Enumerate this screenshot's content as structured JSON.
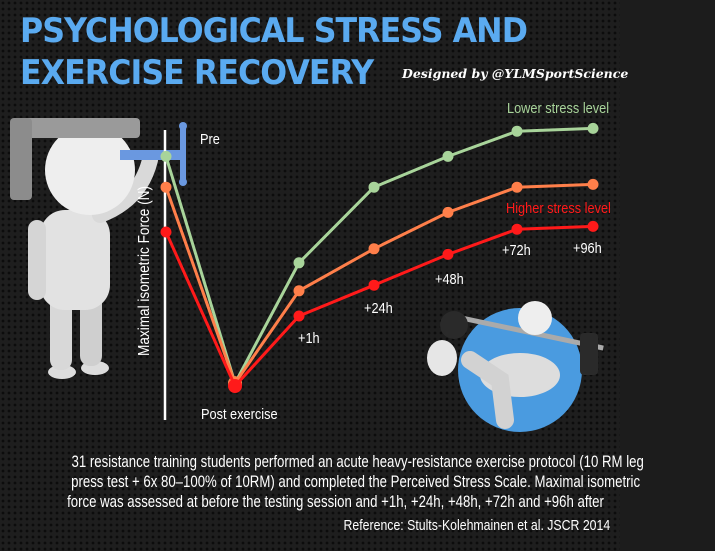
{
  "header": {
    "title_line1": "Psychological Stress and",
    "title_line2": "Exercise Recovery",
    "designed_by": "Designed by @YLMSportScience"
  },
  "chart_data": {
    "type": "line",
    "ylabel": "Maximal isometric Force (N)",
    "xlabel": "",
    "categories": [
      "Pre",
      "Post exercise",
      "+1h",
      "+24h",
      "+48h",
      "+72h",
      "+96h"
    ],
    "y_scale": "relative (no tick values printed)",
    "ylim": [
      0,
      100
    ],
    "grid": false,
    "series": [
      {
        "name": "Lower stress level",
        "color": "#a8d49a",
        "values": [
          87,
          6,
          49,
          76,
          87,
          96,
          97
        ]
      },
      {
        "name": "",
        "color": "#ff7f4a",
        "values": [
          76,
          6,
          39,
          54,
          67,
          76,
          77
        ]
      },
      {
        "name": "Higher stress level",
        "color": "#ff1a1a",
        "values": [
          60,
          5,
          30,
          41,
          52,
          61,
          62
        ]
      }
    ]
  },
  "description": {
    "line1": "31 resistance training students performed an acute heavy-resistance exercise protocol (10 RM leg",
    "line2": "press test + 6x 80–100% of 10RM) and completed the Perceived Stress Scale. Maximal isometric",
    "line3": "force was assessed at before the testing session and +1h, +24h, +48h, +72h and +96h after"
  },
  "reference": "Reference:  Stults-Kolehmainen et al. JSCR 2014",
  "colors": {
    "title": "#5aaaf0",
    "background": "#1e1e1e",
    "ball": "#4a9be0"
  },
  "icons": [
    "clamp-head-figure-icon",
    "bench-press-figure-icon"
  ]
}
